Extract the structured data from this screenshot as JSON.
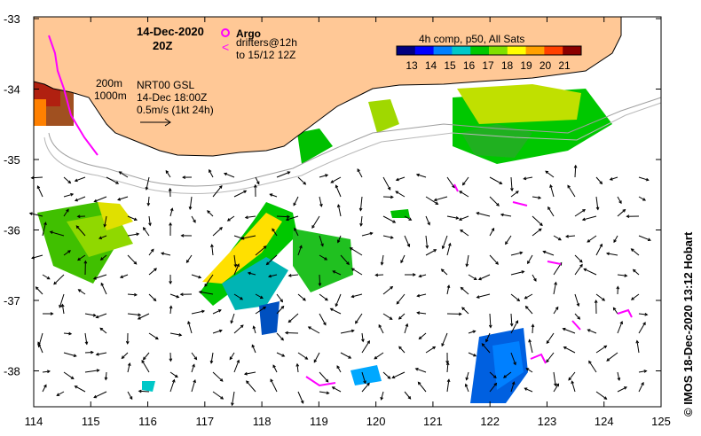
{
  "header": {
    "date": "14-Dec-2020",
    "hour": "20Z"
  },
  "legend": {
    "argo_label": "Argo",
    "drifters_line1": "drifters@12h",
    "drifters_line2": "to 15/12 12Z",
    "argo_marker_color": "#ff00ff",
    "drifter_marker_color": "#ff00ff"
  },
  "depth_contours": {
    "label_200": "200m",
    "label_1000": "1000m"
  },
  "current_info": {
    "line1": "NRT00 GSL",
    "line2": "14-Dec 18:00Z",
    "scale_label": "0.5m/s (1kt 24h)"
  },
  "colorbar": {
    "title": "4h comp, p50, All Sats",
    "ticks": [
      "13",
      "14",
      "15",
      "16",
      "17",
      "18",
      "19",
      "20",
      "21"
    ],
    "colors": [
      "#00007f",
      "#0000ff",
      "#0080ff",
      "#00c8c8",
      "#00c800",
      "#80e000",
      "#ffff00",
      "#ffa000",
      "#ff4000",
      "#8b0000"
    ]
  },
  "axes": {
    "lat_ticks": [
      "-33",
      "-34",
      "-35",
      "-36",
      "-37",
      "-38"
    ],
    "lon_ticks": [
      "114",
      "115",
      "116",
      "117",
      "118",
      "119",
      "120",
      "121",
      "122",
      "123",
      "124",
      "125"
    ]
  },
  "land_color": "#ffc896",
  "credit": "© IMOS 18-Dec-2020 13:12 Hobart"
}
